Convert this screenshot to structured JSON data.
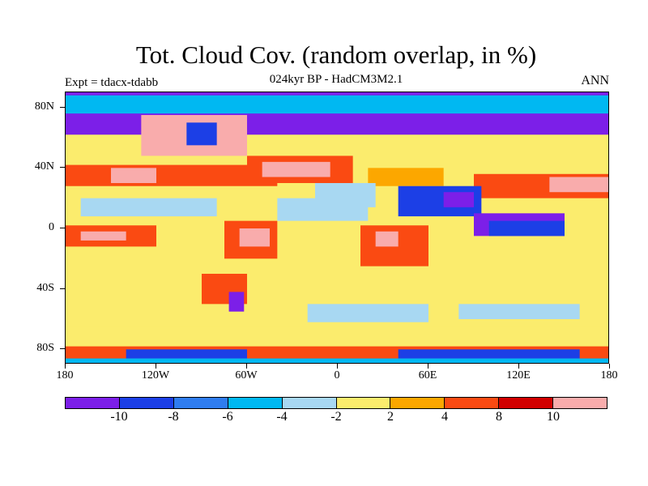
{
  "title": "Tot. Cloud Cov. (random overlap, in %)",
  "subtitle": "024kyr BP - HadCM3M2.1",
  "experiment_label": "Expt = tdacx-tdabb",
  "season_label": "ANN",
  "map": {
    "projection": "cylindrical equidistant",
    "lon_range": [
      -180,
      180
    ],
    "lat_range": [
      -90,
      90
    ],
    "lat_labels": [
      {
        "value": 80,
        "text": "80N"
      },
      {
        "value": 40,
        "text": "40N"
      },
      {
        "value": 0,
        "text": "0"
      },
      {
        "value": -40,
        "text": "40S"
      },
      {
        "value": -80,
        "text": "80S"
      }
    ],
    "lon_labels": [
      {
        "value": -180,
        "text": "180"
      },
      {
        "value": -120,
        "text": "120W"
      },
      {
        "value": -60,
        "text": "60W"
      },
      {
        "value": 0,
        "text": "0"
      },
      {
        "value": 60,
        "text": "60E"
      },
      {
        "value": 120,
        "text": "120E"
      },
      {
        "value": 180,
        "text": "180"
      }
    ]
  },
  "colorbar": {
    "colors": [
      "#7c1fe8",
      "#1c3fe6",
      "#2f7df0",
      "#00b8f2",
      "#a8d8f2",
      "#fbec6d",
      "#fca700",
      "#fa4a12",
      "#d10000",
      "#f9acac"
    ],
    "labels": [
      "-10",
      "-8",
      "-6",
      "-4",
      "-2",
      "2",
      "4",
      "8",
      "10"
    ]
  },
  "field_regions": [
    {
      "lon": [
        -180,
        180
      ],
      "lat": [
        -90,
        90
      ],
      "level": 5
    },
    {
      "lon": [
        -180,
        180
      ],
      "lat": [
        62,
        90
      ],
      "level": 0
    },
    {
      "lon": [
        -180,
        180
      ],
      "lat": [
        76,
        88
      ],
      "level": 3
    },
    {
      "lon": [
        -130,
        -60
      ],
      "lat": [
        48,
        75
      ],
      "level": 9
    },
    {
      "lon": [
        -100,
        -80
      ],
      "lat": [
        55,
        70
      ],
      "level": 1
    },
    {
      "lon": [
        -180,
        -40
      ],
      "lat": [
        28,
        42
      ],
      "level": 7
    },
    {
      "lon": [
        -60,
        10
      ],
      "lat": [
        30,
        48
      ],
      "level": 7
    },
    {
      "lon": [
        -50,
        -5
      ],
      "lat": [
        34,
        44
      ],
      "level": 9
    },
    {
      "lon": [
        -150,
        -120
      ],
      "lat": [
        30,
        40
      ],
      "level": 9
    },
    {
      "lon": [
        20,
        70
      ],
      "lat": [
        28,
        40
      ],
      "level": 6
    },
    {
      "lon": [
        90,
        180
      ],
      "lat": [
        20,
        36
      ],
      "level": 7
    },
    {
      "lon": [
        140,
        180
      ],
      "lat": [
        24,
        34
      ],
      "level": 9
    },
    {
      "lon": [
        -170,
        -80
      ],
      "lat": [
        8,
        20
      ],
      "level": 4
    },
    {
      "lon": [
        -40,
        20
      ],
      "lat": [
        5,
        20
      ],
      "level": 4
    },
    {
      "lon": [
        -15,
        25
      ],
      "lat": [
        14,
        30
      ],
      "level": 4
    },
    {
      "lon": [
        40,
        95
      ],
      "lat": [
        8,
        28
      ],
      "level": 1
    },
    {
      "lon": [
        70,
        90
      ],
      "lat": [
        14,
        24
      ],
      "level": 0
    },
    {
      "lon": [
        -180,
        -120
      ],
      "lat": [
        -12,
        2
      ],
      "level": 7
    },
    {
      "lon": [
        -170,
        -140
      ],
      "lat": [
        -8,
        -2
      ],
      "level": 9
    },
    {
      "lon": [
        -75,
        -40
      ],
      "lat": [
        -20,
        5
      ],
      "level": 7
    },
    {
      "lon": [
        -65,
        -45
      ],
      "lat": [
        -12,
        0
      ],
      "level": 9
    },
    {
      "lon": [
        15,
        60
      ],
      "lat": [
        -25,
        2
      ],
      "level": 7
    },
    {
      "lon": [
        25,
        40
      ],
      "lat": [
        -12,
        -2
      ],
      "level": 9
    },
    {
      "lon": [
        90,
        150
      ],
      "lat": [
        -5,
        10
      ],
      "level": 0
    },
    {
      "lon": [
        100,
        150
      ],
      "lat": [
        -5,
        5
      ],
      "level": 1
    },
    {
      "lon": [
        -90,
        -60
      ],
      "lat": [
        -50,
        -30
      ],
      "level": 7
    },
    {
      "lon": [
        -72,
        -62
      ],
      "lat": [
        -55,
        -42
      ],
      "level": 0
    },
    {
      "lon": [
        -20,
        60
      ],
      "lat": [
        -62,
        -50
      ],
      "level": 4
    },
    {
      "lon": [
        80,
        160
      ],
      "lat": [
        -60,
        -50
      ],
      "level": 4
    },
    {
      "lon": [
        -180,
        180
      ],
      "lat": [
        -75,
        -65
      ],
      "level": 5
    },
    {
      "lon": [
        -180,
        180
      ],
      "lat": [
        -90,
        -78
      ],
      "level": 7
    },
    {
      "lon": [
        -140,
        -60
      ],
      "lat": [
        -86,
        -80
      ],
      "level": 1
    },
    {
      "lon": [
        40,
        160
      ],
      "lat": [
        -86,
        -80
      ],
      "level": 1
    },
    {
      "lon": [
        -180,
        180
      ],
      "lat": [
        -90,
        -86
      ],
      "level": 3
    }
  ]
}
